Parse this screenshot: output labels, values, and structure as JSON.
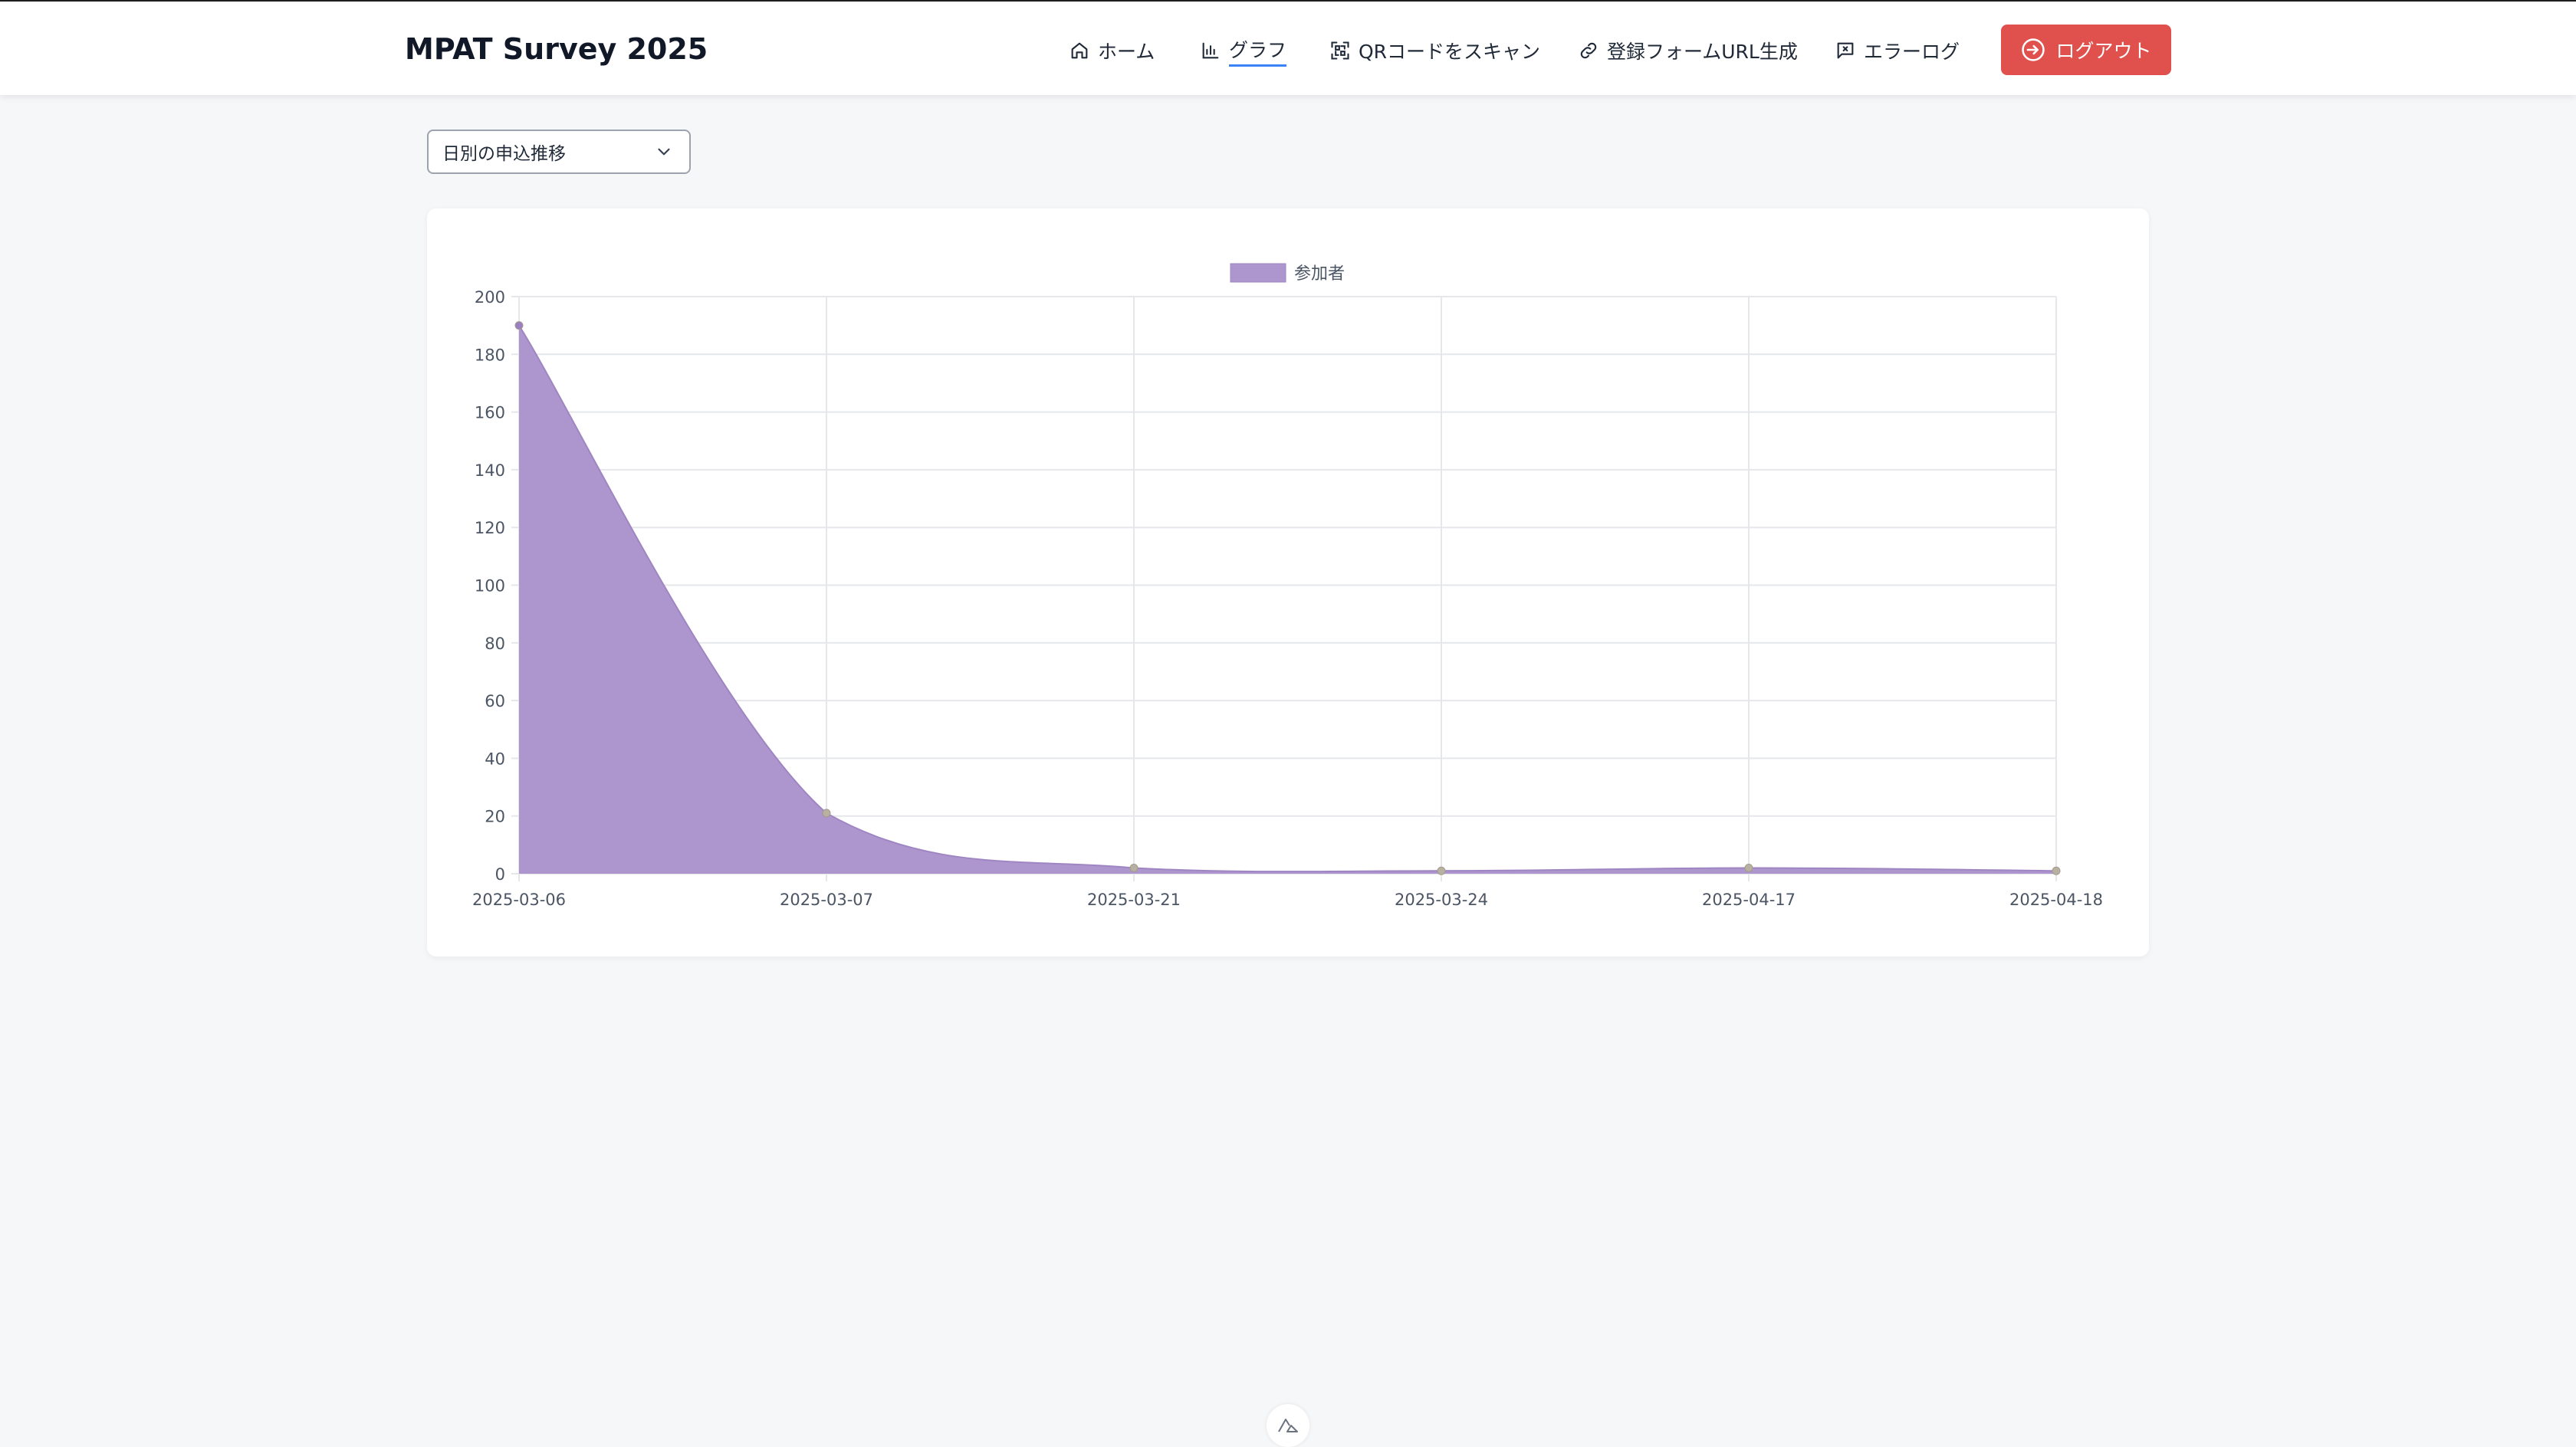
{
  "app": {
    "title": "MPAT Survey 2025"
  },
  "nav": {
    "items": [
      {
        "label": "ホーム",
        "icon": "home-icon",
        "active": false
      },
      {
        "label": "グラフ",
        "icon": "bar-chart-icon",
        "active": true
      },
      {
        "label": "QRコードをスキャン",
        "icon": "qr-scan-icon",
        "active": false
      },
      {
        "label": "登録フォームURL生成",
        "icon": "link-icon",
        "active": false
      },
      {
        "label": "エラーログ",
        "icon": "error-log-icon",
        "active": false
      }
    ],
    "logout_label": "ログアウト",
    "logout_color": "#e0504d"
  },
  "chart_selector": {
    "selected": "日別の申込推移"
  },
  "chart_data": {
    "type": "area",
    "x": [
      "2025-03-06",
      "2025-03-07",
      "2025-03-21",
      "2025-03-24",
      "2025-04-17",
      "2025-04-18"
    ],
    "series": [
      {
        "name": "参加者",
        "values": [
          190,
          21,
          2,
          1,
          2,
          1
        ],
        "color": "#ad95cd"
      }
    ],
    "ylim": [
      0,
      200
    ],
    "yticks": [
      0,
      20,
      40,
      60,
      80,
      100,
      120,
      140,
      160,
      180,
      200
    ],
    "grid": true,
    "legend": "top-center"
  }
}
